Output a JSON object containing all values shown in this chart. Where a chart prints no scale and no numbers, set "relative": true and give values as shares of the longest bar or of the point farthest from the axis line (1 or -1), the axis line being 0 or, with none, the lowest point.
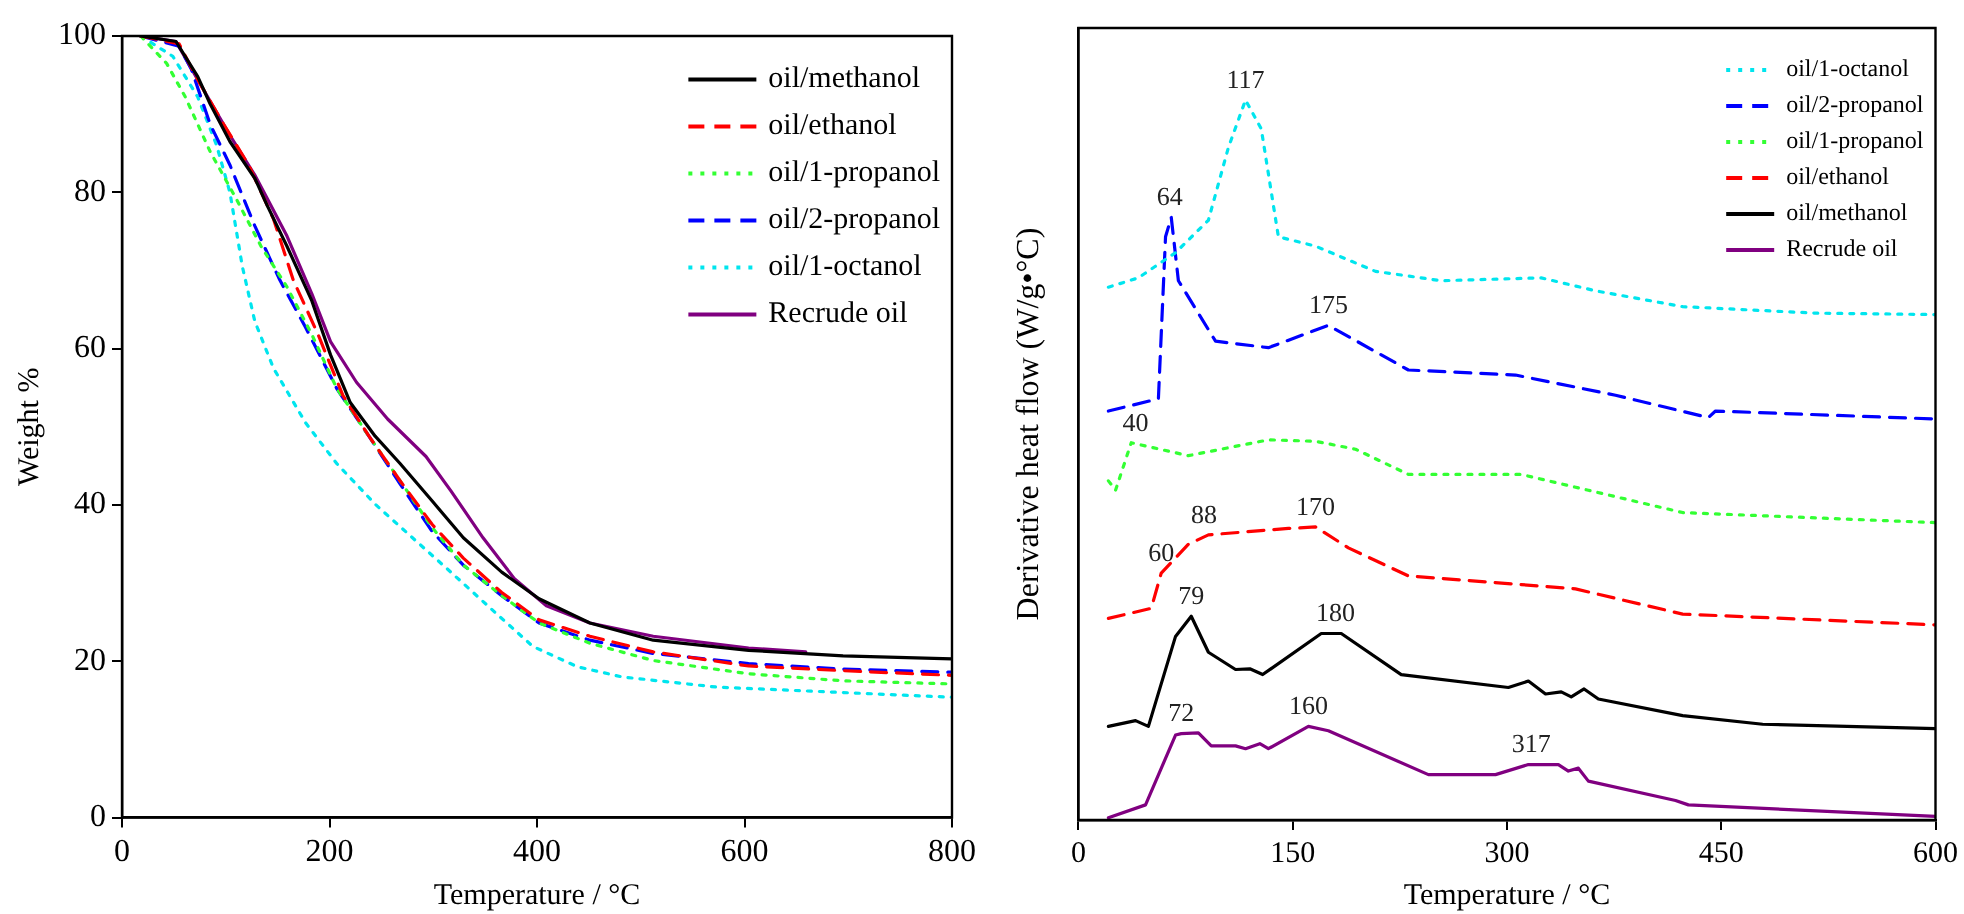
{
  "chart_data": [
    {
      "type": "line",
      "xlabel": "Temperature / °C",
      "ylabel": "Weight %",
      "xlim": [
        0,
        800
      ],
      "xticks": [
        0,
        200,
        400,
        600,
        800
      ],
      "ylim": [
        0,
        100
      ],
      "yticks": [
        0,
        20,
        40,
        60,
        80,
        100
      ],
      "grid": false,
      "legend": "top right",
      "marker": "none",
      "series": [
        {
          "name": "oil/methanol",
          "color": "#000000",
          "line_style": "solid",
          "x": [
            18,
            52,
            73,
            85,
            104,
            128,
            140,
            159,
            183,
            201,
            220,
            244,
            268,
            299,
            329,
            366,
            402,
            451,
            512,
            604,
            695,
            800
          ],
          "values": [
            100,
            99.3,
            94.8,
            91.3,
            86.5,
            81.8,
            78.3,
            73.1,
            66.1,
            59.2,
            53.1,
            48.8,
            45.3,
            40.5,
            35.8,
            31.4,
            28,
            24.9,
            22.7,
            21.4,
            20.7,
            20.3
          ]
        },
        {
          "name": "oil/ethanol",
          "color": "#ff0000",
          "line_style": "dashed",
          "x": [
            18,
            55,
            73,
            98,
            122,
            146,
            165,
            189,
            213,
            238,
            268,
            299,
            329,
            366,
            402,
            451,
            512,
            604,
            695,
            800
          ],
          "values": [
            100,
            99,
            94.4,
            88.7,
            83.5,
            76.6,
            68.8,
            61.8,
            54,
            48.8,
            43.1,
            37.5,
            33.2,
            28.8,
            25.3,
            23.2,
            21.2,
            19.4,
            18.8,
            18.2
          ]
        },
        {
          "name": "oil/1-propanol",
          "color": "#33ff33",
          "line_style": "dotted",
          "x": [
            18,
            43,
            61,
            85,
            110,
            134,
            159,
            183,
            207,
            238,
            268,
            299,
            329,
            366,
            402,
            451,
            512,
            604,
            695,
            800
          ],
          "values": [
            100,
            96.5,
            92.2,
            85.2,
            79.2,
            73.1,
            67.9,
            61.8,
            54.9,
            48.8,
            43.1,
            37.1,
            32.3,
            28.4,
            24.9,
            22.3,
            20.1,
            18.4,
            17.5,
            17.1
          ]
        },
        {
          "name": "oil/2-propanol",
          "color": "#0000ff",
          "line_style": "dashed",
          "x": [
            18,
            55,
            67,
            85,
            104,
            128,
            152,
            177,
            207,
            238,
            268,
            299,
            329,
            366,
            402,
            451,
            512,
            604,
            695,
            800
          ],
          "values": [
            100,
            98.7,
            95.7,
            88.7,
            83.5,
            75.7,
            68.8,
            62.7,
            54.9,
            48.8,
            42.7,
            36.6,
            32.3,
            28.4,
            24.9,
            22.7,
            21,
            19.7,
            19,
            18.6
          ]
        },
        {
          "name": "oil/1-octanol",
          "color": "#00e5ee",
          "line_style": "dotted",
          "x": [
            18,
            49,
            73,
            91,
            104,
            116,
            128,
            146,
            177,
            207,
            244,
            280,
            317,
            360,
            396,
            439,
            482,
            573,
            695,
            800
          ],
          "values": [
            100,
            97.4,
            92.2,
            86.1,
            80,
            70.5,
            63.5,
            57.5,
            50.5,
            45.3,
            40.1,
            35.8,
            31.4,
            26.2,
            21.9,
            19.3,
            18,
            16.7,
            16,
            15.4
          ]
        },
        {
          "name": "Recrude oil",
          "color": "#800080",
          "line_style": "solid",
          "x": [
            18,
            52,
            73,
            104,
            128,
            140,
            159,
            183,
            201,
            226,
            256,
            293,
            317,
            348,
            378,
            409,
            451,
            512,
            604,
            659
          ],
          "values": [
            100,
            99.3,
            94.4,
            87.3,
            82.2,
            79.2,
            74.4,
            67,
            60.9,
            55.7,
            51,
            46.2,
            41.8,
            35.8,
            30.6,
            27.1,
            24.9,
            23.2,
            21.7,
            21.2
          ]
        }
      ]
    },
    {
      "type": "line",
      "xlabel": "Temperature / °C",
      "ylabel": "Derivative heat flow (W/g•°C)",
      "relative": true,
      "tick_labels": "x",
      "xlim": [
        0,
        600
      ],
      "xticks": [
        0,
        150,
        300,
        450,
        600
      ],
      "grid": false,
      "legend": "top right",
      "marker": "none",
      "series": [
        {
          "name": "oil/1-octanol",
          "color": "#00e5ee",
          "line_style": "dotted",
          "x": [
            21,
            42,
            68,
            91,
            105,
            117,
            128,
            140,
            166,
            208,
            254,
            324,
            362,
            423,
            516,
            600
          ],
          "values": [
            0.74,
            0.753,
            0.788,
            0.833,
            0.934,
            1.0,
            0.96,
            0.81,
            0.797,
            0.762,
            0.749,
            0.753,
            0.735,
            0.713,
            0.704,
            0.702
          ]
        },
        {
          "name": "oil/2-propanol",
          "color": "#0000ff",
          "line_style": "dashed",
          "x": [
            21,
            56,
            61,
            65,
            70,
            96,
            133,
            175,
            231,
            306,
            376,
            441,
            446,
            600
          ],
          "values": [
            0.568,
            0.585,
            0.81,
            0.837,
            0.749,
            0.665,
            0.656,
            0.687,
            0.625,
            0.618,
            0.59,
            0.559,
            0.568,
            0.557
          ]
        },
        {
          "name": "oil/1-propanol",
          "color": "#33ff33",
          "line_style": "dotted",
          "x": [
            21,
            26,
            37,
            77,
            133,
            166,
            194,
            231,
            310,
            357,
            423,
            600
          ],
          "values": [
            0.471,
            0.458,
            0.524,
            0.506,
            0.528,
            0.526,
            0.515,
            0.48,
            0.48,
            0.458,
            0.427,
            0.413
          ]
        },
        {
          "name": "oil/ethanol",
          "color": "#ff0000",
          "line_style": "dashed",
          "x": [
            21,
            51,
            58,
            77,
            91,
            147,
            166,
            189,
            231,
            310,
            348,
            423,
            600
          ],
          "values": [
            0.28,
            0.294,
            0.343,
            0.383,
            0.396,
            0.405,
            0.407,
            0.378,
            0.339,
            0.327,
            0.321,
            0.286,
            0.271
          ]
        },
        {
          "name": "oil/methanol",
          "color": "#000000",
          "line_style": "solid",
          "x": [
            21,
            40,
            49,
            68,
            79,
            91,
            110,
            120,
            129,
            170,
            184,
            226,
            301,
            315,
            327,
            338,
            345,
            354,
            364,
            423,
            479,
            600
          ],
          "values": [
            0.13,
            0.138,
            0.13,
            0.255,
            0.283,
            0.233,
            0.209,
            0.21,
            0.202,
            0.259,
            0.259,
            0.202,
            0.184,
            0.193,
            0.175,
            0.178,
            0.171,
            0.182,
            0.168,
            0.145,
            0.133,
            0.127
          ]
        },
        {
          "name": "Recrude oil",
          "color": "#800080",
          "line_style": "solid",
          "x": [
            21,
            47,
            68,
            72,
            84,
            93,
            110,
            117,
            127,
            133,
            161,
            175,
            245,
            292,
            315,
            336,
            343,
            350,
            357,
            418,
            427,
            600
          ],
          "values": [
            0.003,
            0.021,
            0.118,
            0.12,
            0.121,
            0.103,
            0.103,
            0.099,
            0.106,
            0.099,
            0.13,
            0.124,
            0.063,
            0.063,
            0.077,
            0.077,
            0.068,
            0.072,
            0.054,
            0.027,
            0.021,
            0.005
          ]
        }
      ],
      "annotations": [
        {
          "text": "117",
          "x": 117,
          "y": 1.0
        },
        {
          "text": "64",
          "x": 64,
          "y": 0.837
        },
        {
          "text": "175",
          "x": 175,
          "y": 0.687
        },
        {
          "text": "40",
          "x": 40,
          "y": 0.524
        },
        {
          "text": "60",
          "x": 58,
          "y": 0.343
        },
        {
          "text": "88",
          "x": 88,
          "y": 0.396
        },
        {
          "text": "170",
          "x": 166,
          "y": 0.407
        },
        {
          "text": "79",
          "x": 79,
          "y": 0.283
        },
        {
          "text": "180",
          "x": 180,
          "y": 0.259
        },
        {
          "text": "72",
          "x": 72,
          "y": 0.12
        },
        {
          "text": "160",
          "x": 161,
          "y": 0.13
        },
        {
          "text": "317",
          "x": 317,
          "y": 0.077
        }
      ]
    }
  ]
}
